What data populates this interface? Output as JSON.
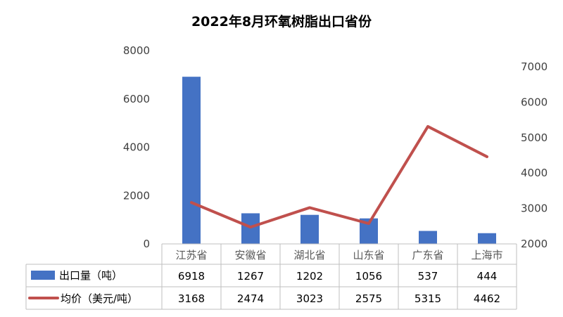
{
  "chart_data": {
    "type": "bar+line",
    "title": "2022年8月环氧树脂出口省份",
    "categories": [
      "江苏省",
      "安徽省",
      "湖北省",
      "山东省",
      "广东省",
      "上海市"
    ],
    "series": [
      {
        "name": "出口量（吨）",
        "type": "bar",
        "axis": "left",
        "color": "#4472C4",
        "values": [
          6918,
          1267,
          1202,
          1056,
          537,
          444
        ]
      },
      {
        "name": "均价（美元/吨）",
        "type": "line",
        "axis": "right",
        "color": "#C0504D",
        "values": [
          3168,
          2474,
          3023,
          2575,
          5315,
          4462
        ]
      }
    ],
    "y_left": {
      "min": 0,
      "max": 8000,
      "ticks": [
        0,
        2000,
        4000,
        6000,
        8000
      ]
    },
    "y_right": {
      "min": 2000,
      "max": 7000,
      "ticks": [
        2000,
        3000,
        4000,
        5000,
        6000,
        7000
      ]
    },
    "data_table": true,
    "legend": "data-table",
    "grid": false
  }
}
